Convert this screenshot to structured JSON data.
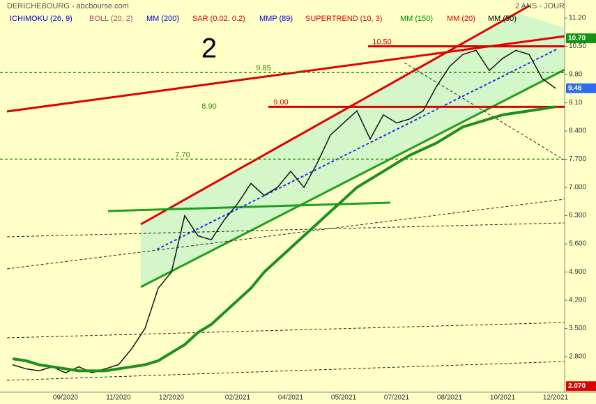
{
  "chart_data": {
    "type": "line",
    "title": "DERICHEBOURG - abcbourse.com",
    "subtitle": "2 ANS - JOUR",
    "annotation": "2",
    "indicators": [
      {
        "name": "ICHIMOKU (26, 9)",
        "color": "#0000cc"
      },
      {
        "name": "BOLL (20, 2)",
        "color": "#b04a6a"
      },
      {
        "name": "MM (200)",
        "color": "#0000cc"
      },
      {
        "name": "SAR (0.02, 0.2)",
        "color": "#dd0000"
      },
      {
        "name": "MMP (89)",
        "color": "#0000cc"
      },
      {
        "name": "SUPERTREND (10, 3)",
        "color": "#dd0000"
      },
      {
        "name": "MM (150)",
        "color": "#008800"
      },
      {
        "name": "MM (20)",
        "color": "#dd0000"
      },
      {
        "name": "MM (50)",
        "color": "#000000"
      }
    ],
    "categories": [
      null,
      null,
      null,
      null,
      "09/2020",
      null,
      null,
      null,
      "11/2020",
      null,
      null,
      null,
      "12/2020",
      null,
      null,
      null,
      null,
      "02/2021",
      null,
      null,
      null,
      "04/2021",
      null,
      null,
      null,
      "05/2021",
      null,
      null,
      null,
      "07/2021",
      null,
      null,
      null,
      "08/2021",
      null,
      null,
      null,
      "10/2021",
      null,
      null,
      null,
      "12/2021"
    ],
    "series": [
      {
        "color": "#111111",
        "values": [
          2.6,
          2.5,
          2.45,
          2.55,
          2.4,
          2.55,
          2.4,
          2.5,
          2.6,
          3.0,
          3.5,
          4.5,
          4.9,
          6.3,
          5.8,
          5.7,
          6.2,
          6.6,
          7.1,
          6.8,
          7.0,
          7.4,
          7.0,
          7.6,
          8.3,
          8.6,
          8.9,
          8.2,
          8.8,
          8.6,
          8.7,
          8.9,
          9.5,
          10.0,
          10.3,
          10.4,
          9.9,
          10.2,
          10.4,
          10.3,
          9.7,
          9.46
        ]
      },
      {
        "name": "MM (150)",
        "color": "#1f8f1f",
        "values": [
          2.75,
          2.7,
          2.6,
          2.55,
          2.5,
          2.45,
          2.45,
          2.45,
          2.5,
          2.55,
          2.6,
          2.7,
          2.9,
          3.1,
          3.4,
          3.6,
          3.9,
          4.2,
          4.5,
          4.9,
          5.2,
          5.5,
          5.8,
          6.1,
          6.4,
          6.7,
          7.0,
          7.2,
          7.4,
          7.6,
          7.8,
          7.95,
          8.1,
          8.3,
          8.5,
          8.6,
          8.7,
          8.8,
          8.85,
          8.9,
          8.95,
          9.0
        ]
      }
    ],
    "ylim": [
      1.92,
      11.65
    ],
    "yticks": [
      {
        "value": 11.2,
        "label": "11.20"
      },
      {
        "value": 10.5,
        "label": "10.50"
      },
      {
        "value": 9.8,
        "label": "9.80"
      },
      {
        "value": 9.1,
        "label": "9.10"
      },
      {
        "value": 8.4,
        "label": "8.400"
      },
      {
        "value": 7.7,
        "label": "7.700"
      },
      {
        "value": 7.0,
        "label": "7.000"
      },
      {
        "value": 6.3,
        "label": "6.300"
      },
      {
        "value": 5.6,
        "label": "5.600"
      },
      {
        "value": 4.9,
        "label": "4.900"
      },
      {
        "value": 4.2,
        "label": "4.200"
      },
      {
        "value": 3.5,
        "label": "3.500"
      },
      {
        "value": 2.8,
        "label": "2.800"
      }
    ],
    "levels": [
      {
        "value": 10.5,
        "label": "10.50",
        "color": "#dd0000"
      },
      {
        "value": 9.85,
        "label": "9.85",
        "color": "#2a8a00"
      },
      {
        "value": 9.0,
        "label": "9.00",
        "color": "#dd0000"
      },
      {
        "value": 8.9,
        "label": "8.90",
        "color": "#2a8a00"
      },
      {
        "value": 7.7,
        "label": "7.70",
        "color": "#2a8a00"
      }
    ],
    "price_tags": [
      {
        "value": 10.7,
        "label": "10.70",
        "color": "#129412"
      },
      {
        "value": 9.46,
        "color": "#2a6df4"
      },
      {
        "value": 2.07,
        "label": "2.070",
        "color": "#dd0000"
      }
    ]
  }
}
